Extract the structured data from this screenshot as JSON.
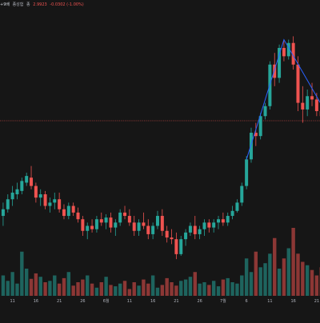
{
  "header": {
    "interval_label": "+9배",
    "volume_label": "종성험",
    "price_prefix": "종",
    "price": "2.9923",
    "change": "-0.0302 (-1.00%)"
  },
  "colors": {
    "background": "#161616",
    "up": "#26a69a",
    "down": "#ef5350",
    "trendline": "#2962ff",
    "price_line": "#ef5350",
    "grid": "#1f1f1f",
    "axis_text": "#b2b5be"
  },
  "chart_data": {
    "type": "candlestick",
    "x_tick_labels": [
      {
        "index": 2,
        "label": "11"
      },
      {
        "index": 7,
        "label": "16"
      },
      {
        "index": 12,
        "label": "21"
      },
      {
        "index": 17,
        "label": "26"
      },
      {
        "index": 22,
        "label": "6월"
      },
      {
        "index": 27,
        "label": "11"
      },
      {
        "index": 32,
        "label": "16"
      },
      {
        "index": 37,
        "label": "21"
      },
      {
        "index": 42,
        "label": "26"
      },
      {
        "index": 47,
        "label": "7월"
      },
      {
        "index": 52,
        "label": "6"
      },
      {
        "index": 57,
        "label": "11"
      },
      {
        "index": 62,
        "label": "16"
      },
      {
        "index": 67,
        "label": "21"
      },
      {
        "index": 72,
        "label": "26"
      }
    ],
    "price_line_value": 2.9923,
    "y_range": [
      2.3,
      3.55
    ],
    "candles": [
      [
        2.42,
        2.5,
        2.36,
        2.46
      ],
      [
        2.46,
        2.55,
        2.44,
        2.52
      ],
      [
        2.52,
        2.6,
        2.48,
        2.56
      ],
      [
        2.55,
        2.62,
        2.52,
        2.58
      ],
      [
        2.57,
        2.65,
        2.55,
        2.63
      ],
      [
        2.62,
        2.68,
        2.6,
        2.66
      ],
      [
        2.65,
        2.72,
        2.58,
        2.6
      ],
      [
        2.6,
        2.62,
        2.5,
        2.53
      ],
      [
        2.53,
        2.58,
        2.48,
        2.55
      ],
      [
        2.55,
        2.57,
        2.46,
        2.48
      ],
      [
        2.48,
        2.53,
        2.44,
        2.5
      ],
      [
        2.5,
        2.56,
        2.46,
        2.52
      ],
      [
        2.52,
        2.56,
        2.44,
        2.46
      ],
      [
        2.46,
        2.49,
        2.4,
        2.42
      ],
      [
        2.42,
        2.5,
        2.4,
        2.48
      ],
      [
        2.48,
        2.5,
        2.42,
        2.44
      ],
      [
        2.44,
        2.47,
        2.38,
        2.4
      ],
      [
        2.4,
        2.42,
        2.3,
        2.33
      ],
      [
        2.33,
        2.38,
        2.28,
        2.36
      ],
      [
        2.36,
        2.4,
        2.32,
        2.34
      ],
      [
        2.34,
        2.42,
        2.32,
        2.4
      ],
      [
        2.4,
        2.44,
        2.36,
        2.38
      ],
      [
        2.38,
        2.43,
        2.34,
        2.41
      ],
      [
        2.41,
        2.44,
        2.32,
        2.35
      ],
      [
        2.35,
        2.4,
        2.3,
        2.38
      ],
      [
        2.38,
        2.46,
        2.36,
        2.44
      ],
      [
        2.44,
        2.48,
        2.4,
        2.42
      ],
      [
        2.42,
        2.46,
        2.36,
        2.38
      ],
      [
        2.38,
        2.42,
        2.3,
        2.33
      ],
      [
        2.33,
        2.4,
        2.3,
        2.38
      ],
      [
        2.38,
        2.44,
        2.34,
        2.36
      ],
      [
        2.36,
        2.4,
        2.28,
        2.31
      ],
      [
        2.31,
        2.38,
        2.28,
        2.36
      ],
      [
        2.36,
        2.45,
        2.34,
        2.42
      ],
      [
        2.42,
        2.46,
        2.3,
        2.33
      ],
      [
        2.33,
        2.36,
        2.26,
        2.29
      ],
      [
        2.29,
        2.34,
        2.25,
        2.28
      ],
      [
        2.28,
        2.32,
        2.16,
        2.19
      ],
      [
        2.19,
        2.3,
        2.18,
        2.28
      ],
      [
        2.28,
        2.34,
        2.24,
        2.32
      ],
      [
        2.32,
        2.38,
        2.3,
        2.36
      ],
      [
        2.36,
        2.42,
        2.28,
        2.31
      ],
      [
        2.31,
        2.36,
        2.28,
        2.34
      ],
      [
        2.34,
        2.4,
        2.3,
        2.38
      ],
      [
        2.38,
        2.4,
        2.32,
        2.35
      ],
      [
        2.35,
        2.4,
        2.32,
        2.38
      ],
      [
        2.38,
        2.42,
        2.34,
        2.4
      ],
      [
        2.4,
        2.44,
        2.36,
        2.38
      ],
      [
        2.38,
        2.44,
        2.36,
        2.42
      ],
      [
        2.42,
        2.48,
        2.4,
        2.45
      ],
      [
        2.45,
        2.52,
        2.44,
        2.5
      ],
      [
        2.5,
        2.62,
        2.48,
        2.6
      ],
      [
        2.6,
        2.78,
        2.58,
        2.76
      ],
      [
        2.76,
        2.95,
        2.74,
        2.92
      ],
      [
        2.92,
        2.98,
        2.84,
        2.9
      ],
      [
        2.9,
        3.04,
        2.88,
        3.02
      ],
      [
        3.02,
        3.1,
        3.0,
        3.08
      ],
      [
        3.08,
        3.35,
        3.06,
        3.33
      ],
      [
        3.33,
        3.4,
        3.2,
        3.25
      ],
      [
        3.25,
        3.45,
        3.22,
        3.43
      ],
      [
        3.43,
        3.48,
        3.35,
        3.38
      ],
      [
        3.38,
        3.48,
        3.36,
        3.46
      ],
      [
        3.46,
        3.5,
        3.3,
        3.33
      ],
      [
        3.33,
        3.38,
        3.05,
        3.1
      ],
      [
        3.1,
        3.2,
        2.98,
        3.06
      ],
      [
        3.06,
        3.18,
        3.02,
        3.14
      ],
      [
        3.14,
        3.22,
        3.08,
        3.12
      ],
      [
        3.12,
        3.16,
        3.02,
        3.05
      ],
      [
        3.05,
        3.12,
        2.98,
        3.02
      ],
      [
        3.02,
        3.08,
        2.96,
        2.99
      ]
    ],
    "volume": [
      0.3,
      0.22,
      0.35,
      0.18,
      0.65,
      0.4,
      0.25,
      0.33,
      0.28,
      0.2,
      0.22,
      0.3,
      0.18,
      0.26,
      0.35,
      0.15,
      0.2,
      0.24,
      0.3,
      0.18,
      0.12,
      0.2,
      0.28,
      0.16,
      0.14,
      0.18,
      0.22,
      0.1,
      0.2,
      0.15,
      0.24,
      0.18,
      0.3,
      0.12,
      0.16,
      0.26,
      0.2,
      0.15,
      0.22,
      0.24,
      0.28,
      0.35,
      0.18,
      0.2,
      0.16,
      0.22,
      0.14,
      0.24,
      0.26,
      0.2,
      0.18,
      0.3,
      0.55,
      0.35,
      0.65,
      0.42,
      0.48,
      0.62,
      0.85,
      0.4,
      0.55,
      0.7,
      1.0,
      0.62,
      0.5,
      0.45,
      0.38,
      0.3,
      0.42,
      0.34
    ],
    "trendline": [
      {
        "x": 52,
        "y": 2.76
      },
      {
        "x": 60,
        "y": 3.48
      },
      {
        "x": 69,
        "y": 3.04
      }
    ]
  }
}
